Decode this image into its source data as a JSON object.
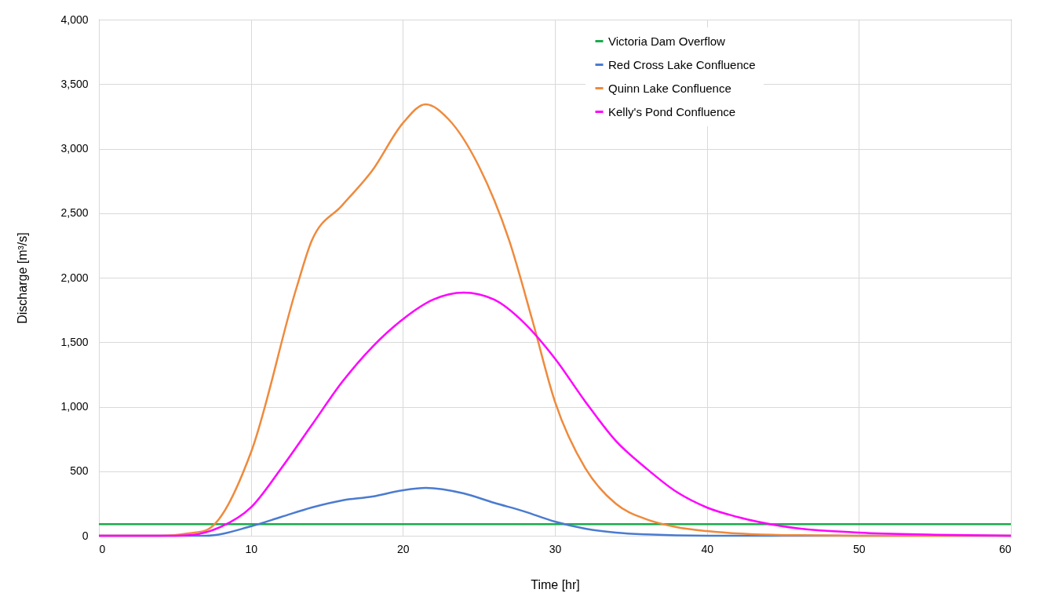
{
  "chart_data": {
    "type": "line",
    "xlabel": "Time [hr]",
    "ylabel": "Discharge [m³/s]",
    "xlim": [
      0,
      60
    ],
    "xticks": [
      0,
      10,
      20,
      30,
      40,
      50,
      60
    ],
    "ylim": [
      0,
      4000
    ],
    "yticks": [
      0,
      500,
      {
        "value": 1000,
        "label": "1,000"
      },
      {
        "value": 1500,
        "label": "1,500"
      },
      {
        "value": 2000,
        "label": "2,000"
      },
      {
        "value": 2500,
        "label": "2,500"
      },
      {
        "value": 3000,
        "label": "3,000"
      },
      {
        "value": 3500,
        "label": "3,500"
      },
      {
        "value": 4000,
        "label": "4,000"
      }
    ],
    "grid": true,
    "legend": "top right",
    "marker": "none",
    "line_style": "solid",
    "series": [
      {
        "name": "Victoria Dam Overflow",
        "color": "#1aab4b",
        "x": [
          0,
          60
        ],
        "values": [
          90,
          90
        ]
      },
      {
        "name": "Red Cross Lake Confluence",
        "color": "#4a7bd0",
        "x": [
          0,
          5,
          7,
          10,
          12,
          14,
          16,
          18,
          20,
          21.5,
          24,
          26,
          28,
          30,
          32,
          34,
          36,
          40,
          60
        ],
        "values": [
          0,
          0,
          0,
          73,
          146,
          219,
          274,
          304,
          353,
          371,
          328,
          255,
          188,
          109,
          55,
          24,
          10,
          0,
          0
        ]
      },
      {
        "name": "Quinn Lake Confluence",
        "color": "#ef8a3c",
        "x": [
          0,
          4,
          5,
          6,
          7,
          10,
          13,
          14,
          16,
          18,
          20,
          21.5,
          23,
          25,
          27,
          28.5,
          30,
          32,
          34,
          36,
          38,
          40,
          45,
          50,
          60
        ],
        "values": [
          0,
          0,
          5,
          20,
          40,
          644,
          1921,
          2286,
          2560,
          2833,
          3198,
          3344,
          3228,
          2863,
          2286,
          1678,
          1040,
          523,
          249,
          128,
          67,
          36,
          5,
          0,
          0
        ]
      },
      {
        "name": "Kelly's Pond Confluence",
        "color": "#ff00ff",
        "x": [
          0,
          5,
          6,
          8,
          10,
          12,
          14,
          16,
          18,
          20,
          22,
          24,
          26,
          28,
          30,
          32,
          34,
          36,
          38,
          40,
          42,
          45,
          50,
          55,
          60
        ],
        "values": [
          0,
          0,
          5,
          67,
          219,
          523,
          857,
          1191,
          1465,
          1678,
          1830,
          1884,
          1830,
          1647,
          1374,
          1040,
          736,
          523,
          340,
          219,
          146,
          73,
          24,
          8,
          0
        ]
      }
    ]
  }
}
